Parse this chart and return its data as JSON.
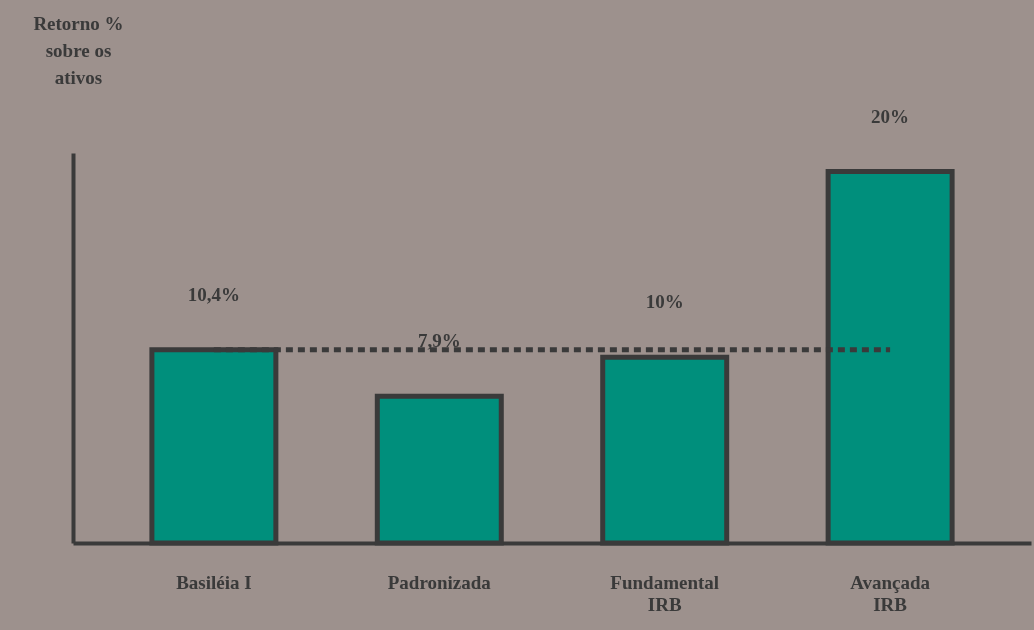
{
  "chart_data": {
    "type": "bar",
    "ylabel": "Retorno %\nsobre os\nativos",
    "categories": [
      "Basiléia I",
      "Padronizada",
      "Fundamental IRB",
      "Avançada IRB"
    ],
    "values": [
      10.4,
      7.9,
      10,
      20
    ],
    "color": "#008f7c",
    "value_labels": [
      "10,4%",
      "7,9%",
      "10%",
      "20%"
    ],
    "ref_lines": [
      {
        "axis": "y",
        "value": 10.4,
        "color": "#3a3a3a",
        "line_style": "dotted"
      }
    ],
    "grid": false
  }
}
